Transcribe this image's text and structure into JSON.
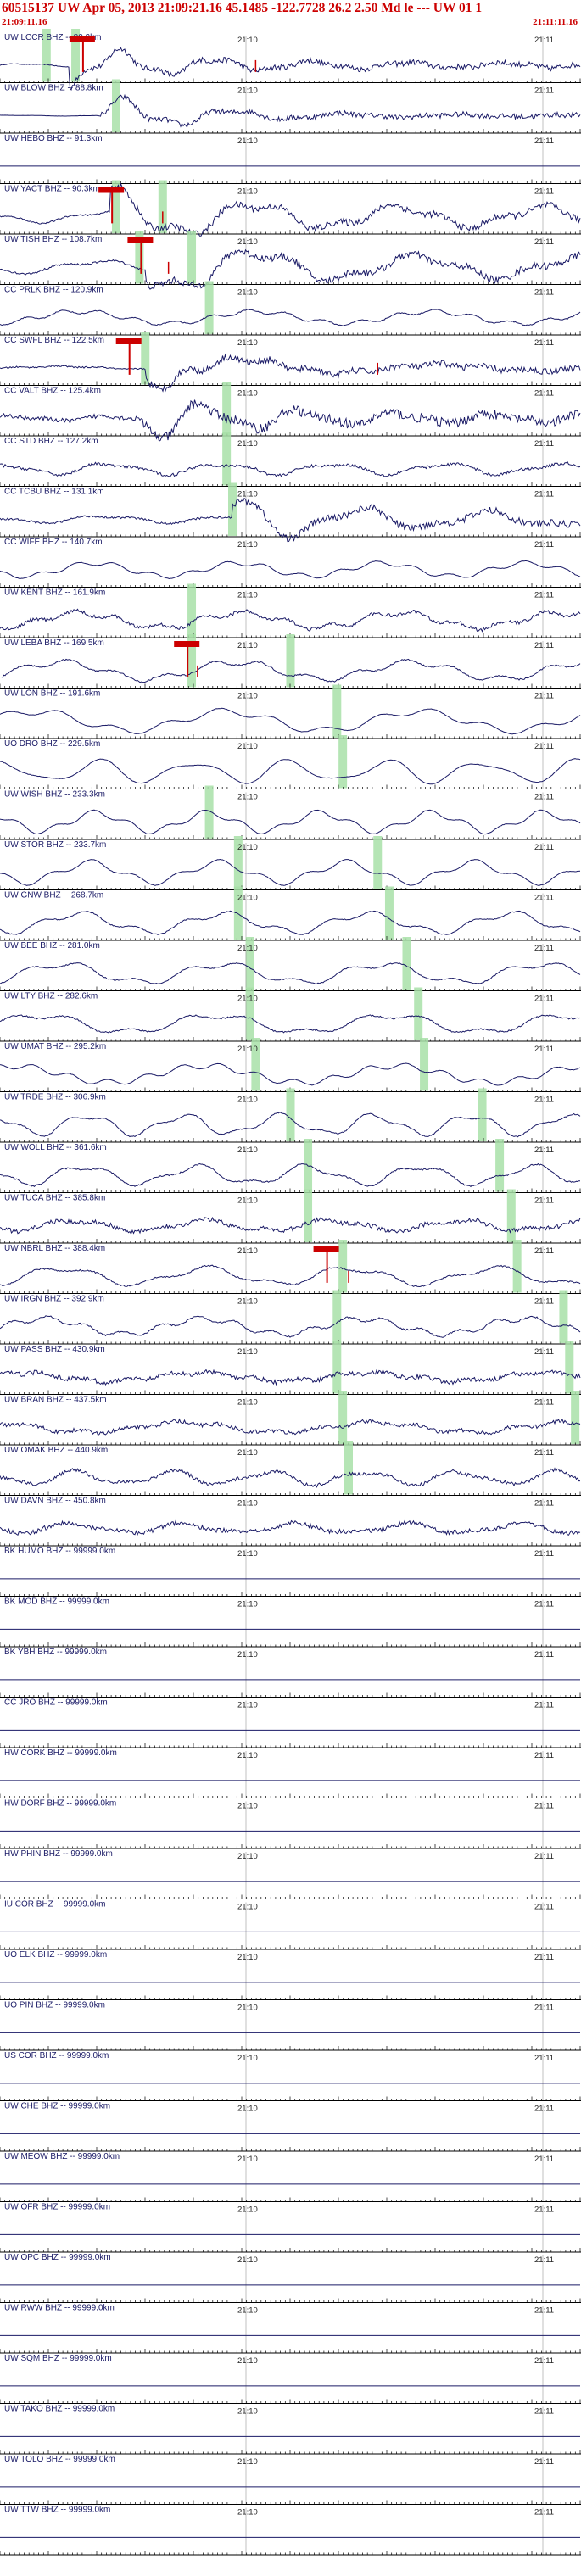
{
  "header": {
    "title": "60515137 UW Apr 05, 2013 21:09:21.16   45.1485 -122.7728 26.2 2.50 Md le --- UW 01   1",
    "start_time": "21:09:11.16",
    "end_time": "21:11:11.16"
  },
  "time_labels": {
    "mid": "21:10",
    "right": "21:11"
  },
  "colors": {
    "header_text": "#cc0000",
    "trace": "#1a1a66",
    "pick": "#cc0000",
    "phase_band": "#a8e0a8",
    "axis": "#000000"
  },
  "traces": [
    {
      "label": "UW LCCR BHZ -- 80.2km",
      "amp": 0.18,
      "noise": 0.06,
      "evt": 0.12,
      "pick": 0.14,
      "band": [
        0.08,
        0.13
      ],
      "tick": 0.44
    },
    {
      "label": "UW BLOW BHZ -- 88.8km",
      "amp": 0.05,
      "noise": 0.02,
      "evt": 0.17,
      "pick": null,
      "band": [
        0.2
      ],
      "tick": null
    },
    {
      "label": "UW HEBO BHZ -- 91.3km",
      "amp": 0.0,
      "noise": 0.0,
      "evt": null,
      "pick": null,
      "band": [],
      "tick": null
    },
    {
      "label": "UW YACT BHZ -- 90.3km",
      "amp": 0.7,
      "noise": 0.15,
      "evt": 0.19,
      "pick": 0.19,
      "band": [
        0.2,
        0.28
      ],
      "tick": 0.28
    },
    {
      "label": "UW TISH BHZ -- 108.7km",
      "amp": 0.75,
      "noise": 0.2,
      "evt": 0.25,
      "pick": 0.24,
      "band": [
        0.24,
        0.33
      ],
      "tick": 0.29
    },
    {
      "label": "CC PRLK BHZ -- 120.9km",
      "amp": 0.5,
      "noise": 0.1,
      "evt": null,
      "pick": null,
      "band": [
        0.36
      ],
      "tick": null
    },
    {
      "label": "CC SWFL BHZ -- 122.5km",
      "amp": 0.2,
      "noise": 0.15,
      "evt": 0.25,
      "pick": 0.22,
      "band": [
        0.25
      ],
      "tick": 0.65
    },
    {
      "label": "CC VALT BHZ -- 125.4km",
      "amp": 0.3,
      "noise": 0.45,
      "evt": 0.24,
      "pick": null,
      "band": [
        0.39
      ],
      "tick": null
    },
    {
      "label": "CC STD BHZ -- 127.2km",
      "amp": 0.4,
      "noise": 0.3,
      "evt": null,
      "pick": null,
      "band": [
        0.39
      ],
      "tick": null
    },
    {
      "label": "CC TCBU BHZ -- 131.1km",
      "amp": 0.45,
      "noise": 0.2,
      "evt": 0.4,
      "pick": null,
      "band": [
        0.4
      ],
      "tick": null
    },
    {
      "label": "CC WIFE BHZ -- 140.7km",
      "amp": 0.55,
      "noise": 0.05,
      "evt": null,
      "pick": null,
      "band": [],
      "tick": null
    },
    {
      "label": "UW KENT BHZ -- 161.9km",
      "amp": 0.6,
      "noise": 0.35,
      "evt": null,
      "pick": null,
      "band": [
        0.33
      ],
      "tick": null
    },
    {
      "label": "UW LEBA BHZ -- 169.5km",
      "amp": 0.7,
      "noise": 0.15,
      "evt": null,
      "pick": 0.32,
      "band": [
        0.33,
        0.5
      ],
      "tick": 0.34
    },
    {
      "label": "UW LON BHZ -- 191.6km",
      "amp": 0.8,
      "noise": 0.05,
      "evt": null,
      "pick": null,
      "band": [
        0.58
      ],
      "tick": null
    },
    {
      "label": "UO DRO BHZ -- 229.5km",
      "amp": 0.8,
      "noise": 0.05,
      "evt": null,
      "pick": null,
      "band": [
        0.59
      ],
      "tick": null
    },
    {
      "label": "UW WISH BHZ -- 233.3km",
      "amp": 0.75,
      "noise": 0.05,
      "evt": null,
      "pick": null,
      "band": [
        0.36
      ],
      "tick": null
    },
    {
      "label": "UW STOR BHZ -- 233.7km",
      "amp": 0.8,
      "noise": 0.05,
      "evt": null,
      "pick": null,
      "band": [
        0.41,
        0.65
      ],
      "tick": null
    },
    {
      "label": "UW GNW BHZ -- 268.7km",
      "amp": 0.75,
      "noise": 0.1,
      "evt": null,
      "pick": null,
      "band": [
        0.41,
        0.67
      ],
      "tick": null
    },
    {
      "label": "UW BEE BHZ -- 281.0km",
      "amp": 0.75,
      "noise": 0.1,
      "evt": null,
      "pick": null,
      "band": [
        0.43,
        0.7
      ],
      "tick": null
    },
    {
      "label": "UW LTY BHZ -- 282.6km",
      "amp": 0.7,
      "noise": 0.15,
      "evt": null,
      "pick": null,
      "band": [
        0.43,
        0.72
      ],
      "tick": null
    },
    {
      "label": "UW UMAT BHZ -- 295.2km",
      "amp": 0.7,
      "noise": 0.05,
      "evt": null,
      "pick": null,
      "band": [
        0.44,
        0.73
      ],
      "tick": null
    },
    {
      "label": "UW TRDE BHZ -- 306.9km",
      "amp": 0.75,
      "noise": 0.1,
      "evt": null,
      "pick": null,
      "band": [
        0.5,
        0.83
      ],
      "tick": null
    },
    {
      "label": "UW WOLL BHZ -- 361.6km",
      "amp": 0.7,
      "noise": 0.15,
      "evt": null,
      "pick": null,
      "band": [
        0.53,
        0.86
      ],
      "tick": null
    },
    {
      "label": "UW TUCA BHZ -- 385.8km",
      "amp": 0.4,
      "noise": 0.45,
      "evt": null,
      "pick": null,
      "band": [
        0.53,
        0.88
      ],
      "tick": null
    },
    {
      "label": "UW NBRL BHZ -- 388.4km",
      "amp": 0.65,
      "noise": 0.15,
      "evt": null,
      "pick": 0.56,
      "band": [
        0.59,
        0.89
      ],
      "tick": 0.6
    },
    {
      "label": "UW IRGN BHZ -- 392.9km",
      "amp": 0.65,
      "noise": 0.15,
      "evt": null,
      "pick": null,
      "band": [
        0.58,
        0.97
      ],
      "tick": null
    },
    {
      "label": "UW PASS BHZ -- 430.9km",
      "amp": 0.35,
      "noise": 0.45,
      "evt": null,
      "pick": null,
      "band": [
        0.58,
        0.98
      ],
      "tick": null
    },
    {
      "label": "UW BRAN BHZ -- 437.5km",
      "amp": 0.4,
      "noise": 0.4,
      "evt": null,
      "pick": null,
      "band": [
        0.59,
        0.99
      ],
      "tick": null
    },
    {
      "label": "UW OMAK BHZ -- 440.9km",
      "amp": 0.5,
      "noise": 0.35,
      "evt": null,
      "pick": null,
      "band": [
        0.6
      ],
      "tick": null
    },
    {
      "label": "UW DAVN BHZ -- 450.8km",
      "amp": 0.35,
      "noise": 0.45,
      "evt": null,
      "pick": null,
      "band": [],
      "tick": null
    },
    {
      "label": "BK HUMO BHZ -- 99999.0km",
      "amp": 0,
      "noise": 0,
      "evt": null,
      "pick": null,
      "band": [],
      "tick": null
    },
    {
      "label": "BK MOD BHZ -- 99999.0km",
      "amp": 0,
      "noise": 0,
      "evt": null,
      "pick": null,
      "band": [],
      "tick": null
    },
    {
      "label": "BK YBH BHZ -- 99999.0km",
      "amp": 0,
      "noise": 0,
      "evt": null,
      "pick": null,
      "band": [],
      "tick": null
    },
    {
      "label": "CC JRO BHZ -- 99999.0km",
      "amp": 0,
      "noise": 0,
      "evt": null,
      "pick": null,
      "band": [],
      "tick": null
    },
    {
      "label": "HW CORK BHZ -- 99999.0km",
      "amp": 0,
      "noise": 0,
      "evt": null,
      "pick": null,
      "band": [],
      "tick": null
    },
    {
      "label": "HW DORF BHZ -- 99999.0km",
      "amp": 0,
      "noise": 0,
      "evt": null,
      "pick": null,
      "band": [],
      "tick": null
    },
    {
      "label": "HW PHIN BHZ -- 99999.0km",
      "amp": 0,
      "noise": 0,
      "evt": null,
      "pick": null,
      "band": [],
      "tick": null
    },
    {
      "label": "IU COR BHZ -- 99999.0km",
      "amp": 0,
      "noise": 0,
      "evt": null,
      "pick": null,
      "band": [],
      "tick": null
    },
    {
      "label": "UO ELK BHZ -- 99999.0km",
      "amp": 0,
      "noise": 0,
      "evt": null,
      "pick": null,
      "band": [],
      "tick": null
    },
    {
      "label": "UO PIN BHZ -- 99999.0km",
      "amp": 0,
      "noise": 0,
      "evt": null,
      "pick": null,
      "band": [],
      "tick": null
    },
    {
      "label": "US COR BHZ -- 99999.0km",
      "amp": 0,
      "noise": 0,
      "evt": null,
      "pick": null,
      "band": [],
      "tick": null
    },
    {
      "label": "UW CHE BHZ -- 99999.0km",
      "amp": 0,
      "noise": 0,
      "evt": null,
      "pick": null,
      "band": [],
      "tick": null
    },
    {
      "label": "UW MEOW BHZ -- 99999.0km",
      "amp": 0,
      "noise": 0,
      "evt": null,
      "pick": null,
      "band": [],
      "tick": null
    },
    {
      "label": "UW OFR BHZ -- 99999.0km",
      "amp": 0,
      "noise": 0,
      "evt": null,
      "pick": null,
      "band": [],
      "tick": null
    },
    {
      "label": "UW OPC BHZ -- 99999.0km",
      "amp": 0,
      "noise": 0,
      "evt": null,
      "pick": null,
      "band": [],
      "tick": null
    },
    {
      "label": "UW RWW BHZ -- 99999.0km",
      "amp": 0,
      "noise": 0,
      "evt": null,
      "pick": null,
      "band": [],
      "tick": null
    },
    {
      "label": "UW SQM BHZ -- 99999.0km",
      "amp": 0,
      "noise": 0,
      "evt": null,
      "pick": null,
      "band": [],
      "tick": null
    },
    {
      "label": "UW TAKO BHZ -- 99999.0km",
      "amp": 0,
      "noise": 0,
      "evt": null,
      "pick": null,
      "band": [],
      "tick": null
    },
    {
      "label": "UW TOLO BHZ -- 99999.0km",
      "amp": 0,
      "noise": 0,
      "evt": null,
      "pick": null,
      "band": [],
      "tick": null
    },
    {
      "label": "UW TTW BHZ -- 99999.0km",
      "amp": 0,
      "noise": 0,
      "evt": null,
      "pick": null,
      "band": [],
      "tick": null
    }
  ]
}
